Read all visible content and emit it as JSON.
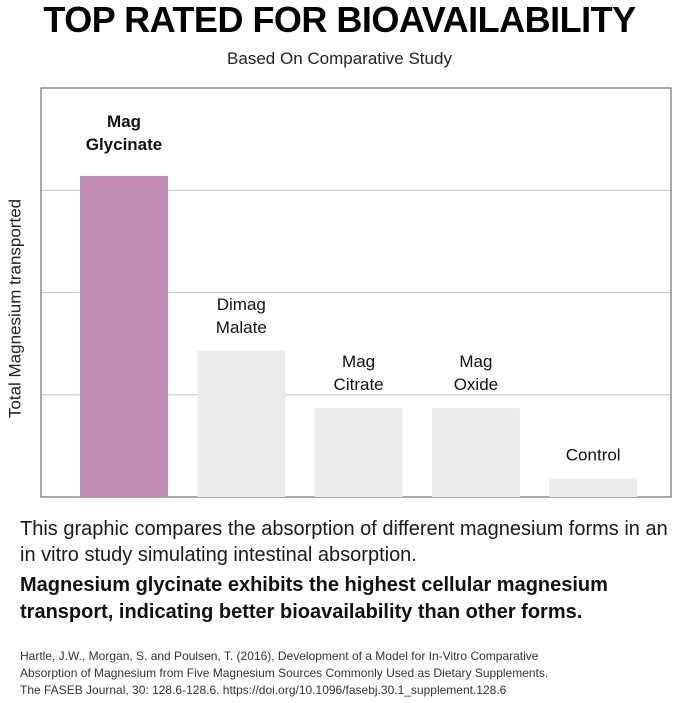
{
  "header": {
    "title": "TOP RATED FOR BIOAVAILABILITY",
    "subtitle": "Based On Comparative Study"
  },
  "chart_data": {
    "type": "bar",
    "title": "",
    "xlabel": "",
    "ylabel": "Total Magnesium transported",
    "categories": [
      [
        "Mag",
        "Glycinate"
      ],
      [
        "Dimag",
        "Malate"
      ],
      [
        "Mag",
        "Citrate"
      ],
      [
        "Mag",
        "Oxide"
      ],
      [
        "Control"
      ]
    ],
    "values": [
      3.14,
      1.43,
      0.87,
      0.87,
      0.18
    ],
    "ylim": [
      0,
      4
    ],
    "grid": true,
    "highlight_index": 0,
    "colors": {
      "highlight": "#c38fb8",
      "default": "#ebebeb",
      "grid": "#c8c8c8",
      "frame": "#555555"
    }
  },
  "body": {
    "description": "This graphic compares the absorption of different magnesium forms in an in vitro study simulating intestinal absorption.",
    "highlight": "Magnesium glycinate exhibits the highest cellular magnesium transport, indicating better bioavailability than other forms."
  },
  "citation": {
    "line1": "Hartle, J.W., Morgan, S. and Poulsen, T. (2016), Development of a Model for In-Vitro Comparative",
    "line2": "Absorption of Magnesium from Five Magnesium Sources Commonly Used as Dietary Supplements.",
    "line3": "The FASEB Journal, 30: 128.6-128.6. https://doi.org/10.1096/fasebj.30.1_supplement.128.6"
  }
}
